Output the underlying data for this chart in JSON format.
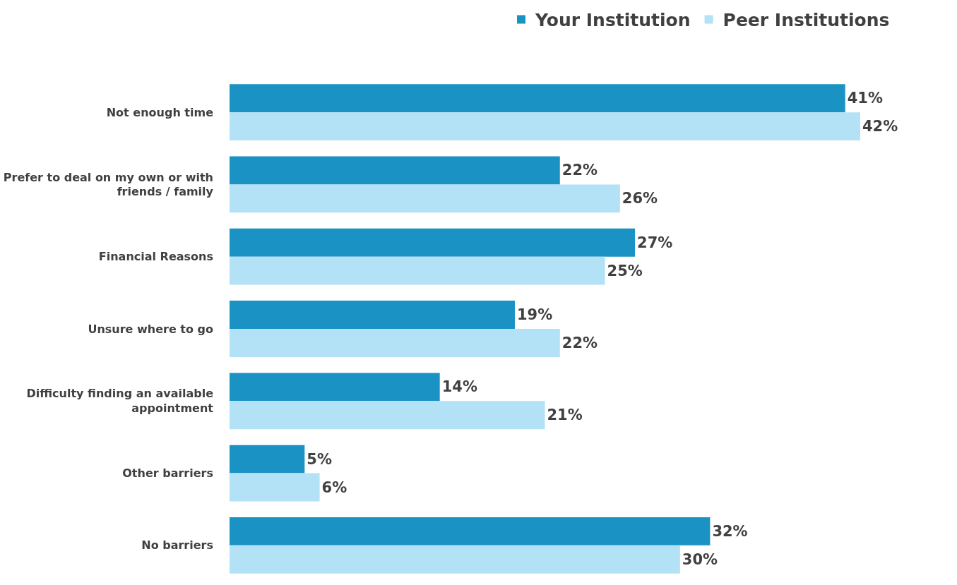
{
  "chart_data": {
    "type": "bar",
    "orientation": "horizontal",
    "categories": [
      "Not enough time",
      "Prefer to deal on my own or with friends / family",
      "Financial Reasons",
      "Unsure where to go",
      "Difficulty finding an available appointment",
      "Other barriers",
      "No barriers"
    ],
    "series": [
      {
        "name": "Your Institution",
        "color": "#1a92c4",
        "values": [
          41,
          22,
          27,
          19,
          14,
          5,
          32
        ],
        "value_labels": [
          "41%",
          "22%",
          "27%",
          "19%",
          "14%",
          "5%",
          "32%"
        ]
      },
      {
        "name": "Peer Institutions",
        "color": "#b3e1f5",
        "values": [
          42,
          26,
          25,
          22,
          21,
          6,
          30
        ],
        "value_labels": [
          "42%",
          "26%",
          "25%",
          "22%",
          "21%",
          "6%",
          "30%"
        ]
      }
    ],
    "tick_labels": "y",
    "legend": "top right"
  }
}
